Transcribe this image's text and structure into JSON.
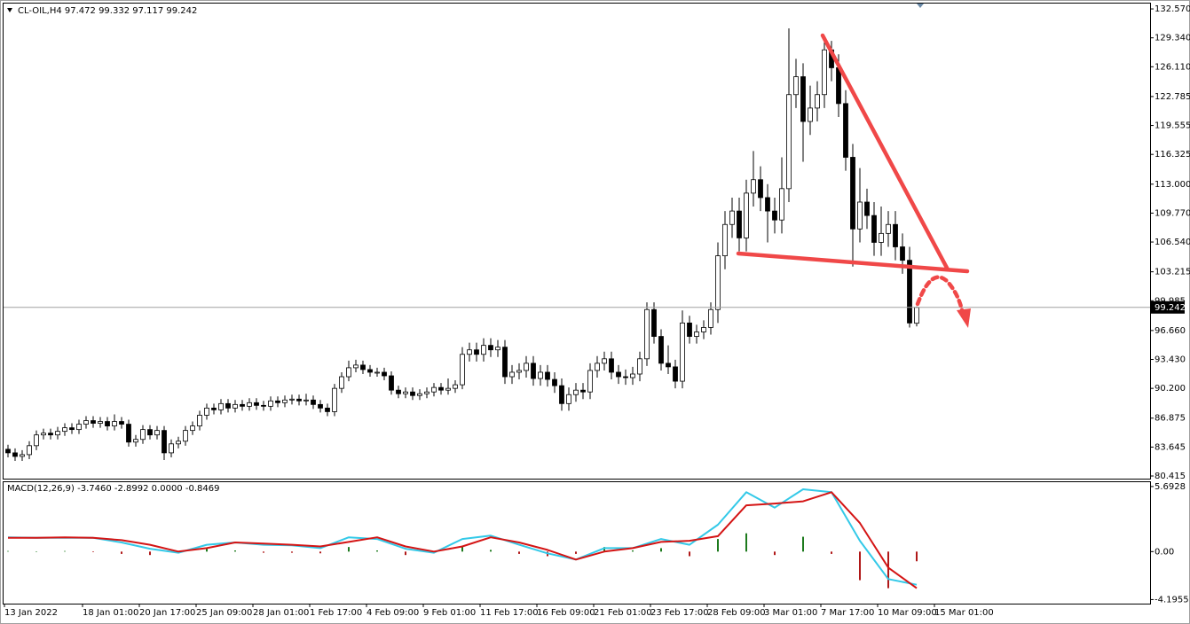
{
  "chart_data": [
    {
      "type": "candlestick",
      "title": "CL-OIL,H4  97.472 99.332 97.117 99.242",
      "categories": [
        "13 Jan 2022",
        null,
        null,
        null,
        null,
        null,
        null,
        null,
        null,
        null,
        null,
        "18 Jan 01:00",
        null,
        null,
        null,
        null,
        null,
        null,
        null,
        "20 Jan 17:00",
        null,
        null,
        null,
        null,
        null,
        null,
        null,
        "25 Jan 09:00",
        null,
        null,
        null,
        null,
        null,
        null,
        null,
        "28 Jan 01:00",
        null,
        null,
        null,
        null,
        null,
        null,
        null,
        "1 Feb 17:00",
        null,
        null,
        null,
        null,
        null,
        null,
        null,
        "4 Feb 09:00",
        null,
        null,
        null,
        null,
        null,
        null,
        null,
        "9 Feb 01:00",
        null,
        null,
        null,
        null,
        null,
        null,
        null,
        "11 Feb 17:00",
        null,
        null,
        null,
        null,
        null,
        null,
        null,
        "16 Feb 09:00",
        null,
        null,
        null,
        null,
        null,
        null,
        null,
        "21 Feb 01:00",
        null,
        null,
        null,
        null,
        null,
        null,
        null,
        "23 Feb 17:00",
        null,
        null,
        null,
        null,
        null,
        null,
        null,
        "28 Feb 09:00",
        null,
        null,
        null,
        null,
        null,
        null,
        null,
        "3 Mar 01:00",
        null,
        null,
        null,
        null,
        null,
        null,
        null,
        "7 Mar 17:00",
        null,
        null,
        null,
        null,
        null,
        null,
        null,
        "10 Mar 09:00",
        null,
        null,
        null,
        null,
        null,
        null,
        null,
        "15 Mar 01:00"
      ],
      "open": [
        83.4,
        83.0,
        82.6,
        82.8,
        83.8,
        85.0,
        85.2,
        85.0,
        85.4,
        85.8,
        85.6,
        86.2,
        86.6,
        86.3,
        86.5,
        86.0,
        86.5,
        86.2,
        84.2,
        84.5,
        85.6,
        85.0,
        85.5,
        83.0,
        84.0,
        84.3,
        85.5,
        86.0,
        87.2,
        88.0,
        87.8,
        88.5,
        88.0,
        88.4,
        88.2,
        88.6,
        88.3,
        88.2,
        88.8,
        88.6,
        88.9,
        89.0,
        88.8,
        88.9,
        88.4,
        88.0,
        87.6,
        90.2,
        91.5,
        92.5,
        92.8,
        92.3,
        92.0,
        92.0,
        91.6,
        90.0,
        89.6,
        89.8,
        89.4,
        89.6,
        89.8,
        90.3,
        90.0,
        90.2,
        90.6,
        94.0,
        94.5,
        94.0,
        95.0,
        94.5,
        94.8,
        91.5,
        92.0,
        92.2,
        93.0,
        91.3,
        92.0,
        91.2,
        90.5,
        88.5,
        89.5,
        90.0,
        89.8,
        92.2,
        93.0,
        93.5,
        92.0,
        91.5,
        91.4,
        91.8,
        93.5,
        99.0,
        96.0,
        93.0,
        92.6,
        91.0,
        97.5,
        96.0,
        96.5,
        97.0,
        99.0,
        105.0,
        108.5,
        110.0,
        107.0,
        112.0,
        113.5,
        111.5,
        110.0,
        109.0,
        112.5,
        123.0,
        125.0,
        120.0,
        121.5,
        123.0,
        128.0,
        126.0,
        122.0,
        116.0,
        108.0,
        111.0,
        109.5,
        106.5,
        107.5,
        108.5,
        106.0,
        104.5,
        97.472,
        null,
        null,
        null
      ],
      "high": [
        83.9,
        83.5,
        83.3,
        84.3,
        85.5,
        85.7,
        85.7,
        85.9,
        86.3,
        86.3,
        86.7,
        87.1,
        87.1,
        87.0,
        87.0,
        87.3,
        87.0,
        86.7,
        85.0,
        86.1,
        86.1,
        86.0,
        86.0,
        84.5,
        84.8,
        86.0,
        86.5,
        87.7,
        88.5,
        88.5,
        89.0,
        89.0,
        88.9,
        88.9,
        89.1,
        89.1,
        88.8,
        89.3,
        89.3,
        89.4,
        89.5,
        89.5,
        89.6,
        89.4,
        88.9,
        88.5,
        90.7,
        92.0,
        93.3,
        93.4,
        93.3,
        92.8,
        92.5,
        92.5,
        92.1,
        90.5,
        90.3,
        90.3,
        90.1,
        90.3,
        90.8,
        90.8,
        91.3,
        91.1,
        94.8,
        95.3,
        95.3,
        95.8,
        95.8,
        95.6,
        95.6,
        92.8,
        93.0,
        93.8,
        93.8,
        92.8,
        92.8,
        92.0,
        91.3,
        90.3,
        90.8,
        90.8,
        93.0,
        93.8,
        94.3,
        94.3,
        92.8,
        92.3,
        92.6,
        94.3,
        99.8,
        99.8,
        96.8,
        95.0,
        93.4,
        98.9,
        98.3,
        97.3,
        97.8,
        99.8,
        106.5,
        110.0,
        111.5,
        111.5,
        113.5,
        116.7,
        115.0,
        113.0,
        111.5,
        116.0,
        130.4,
        127.0,
        126.5,
        124.0,
        124.5,
        129.5,
        129.0,
        127.5,
        123.5,
        117.5,
        114.8,
        112.5,
        111.0,
        110.5,
        110.0,
        110.0,
        107.5,
        106.0,
        99.332,
        null,
        null,
        null
      ],
      "low": [
        82.5,
        82.1,
        82.1,
        82.3,
        83.3,
        84.5,
        84.5,
        84.5,
        84.9,
        85.1,
        85.1,
        85.7,
        85.8,
        85.8,
        85.5,
        85.5,
        85.7,
        83.7,
        83.7,
        84.0,
        84.5,
        84.5,
        82.2,
        82.5,
        83.5,
        83.8,
        85.0,
        85.5,
        86.7,
        87.3,
        87.3,
        87.5,
        87.5,
        87.7,
        87.7,
        87.8,
        87.7,
        87.7,
        88.1,
        88.1,
        88.4,
        88.3,
        88.3,
        87.9,
        87.5,
        87.1,
        87.1,
        89.7,
        91.0,
        92.0,
        91.8,
        91.5,
        91.5,
        91.1,
        89.5,
        89.1,
        89.1,
        88.9,
        88.9,
        89.1,
        89.3,
        89.5,
        89.5,
        89.7,
        90.1,
        93.2,
        93.2,
        93.2,
        93.7,
        93.7,
        90.7,
        90.7,
        91.2,
        91.4,
        90.5,
        90.5,
        90.4,
        89.7,
        87.7,
        87.7,
        88.7,
        89.0,
        89.0,
        91.4,
        92.2,
        91.2,
        90.7,
        90.6,
        90.6,
        91.0,
        92.7,
        95.2,
        92.2,
        91.8,
        90.2,
        90.2,
        95.2,
        95.2,
        95.7,
        96.2,
        97.5,
        103.5,
        107.0,
        105.5,
        105.5,
        110.5,
        110.0,
        106.5,
        107.5,
        107.5,
        111.0,
        121.5,
        115.5,
        118.5,
        120.0,
        121.5,
        124.5,
        120.5,
        114.5,
        103.8,
        106.5,
        108.0,
        105.0,
        105.0,
        106.0,
        104.5,
        103.0,
        97.0,
        97.117,
        null,
        null,
        null
      ],
      "close": [
        83.0,
        82.6,
        82.8,
        83.8,
        85.0,
        85.2,
        85.0,
        85.4,
        85.8,
        85.6,
        86.2,
        86.6,
        86.3,
        86.5,
        86.0,
        86.5,
        86.2,
        84.2,
        84.5,
        85.6,
        85.0,
        85.5,
        83.0,
        84.0,
        84.3,
        85.5,
        86.0,
        87.2,
        88.0,
        87.8,
        88.5,
        88.0,
        88.4,
        88.2,
        88.6,
        88.3,
        88.2,
        88.8,
        88.6,
        88.9,
        89.0,
        88.8,
        88.9,
        88.4,
        88.0,
        87.6,
        90.2,
        91.5,
        92.5,
        92.8,
        92.3,
        92.0,
        92.0,
        91.6,
        90.0,
        89.6,
        89.8,
        89.4,
        89.6,
        89.8,
        90.3,
        90.0,
        90.2,
        90.6,
        94.0,
        94.5,
        94.0,
        95.0,
        94.5,
        94.8,
        91.5,
        92.0,
        92.2,
        93.0,
        91.3,
        92.0,
        91.2,
        90.5,
        88.5,
        89.5,
        90.0,
        89.8,
        92.2,
        93.0,
        93.5,
        92.0,
        91.5,
        91.4,
        91.8,
        93.5,
        99.0,
        96.0,
        93.0,
        92.6,
        91.0,
        97.5,
        96.0,
        96.5,
        97.0,
        99.0,
        105.0,
        108.5,
        110.0,
        107.0,
        112.0,
        113.5,
        111.5,
        110.0,
        109.0,
        112.5,
        123.0,
        125.0,
        120.0,
        121.5,
        123.0,
        128.0,
        126.0,
        122.0,
        116.0,
        108.0,
        111.0,
        109.5,
        106.5,
        107.5,
        108.5,
        106.0,
        104.5,
        97.5,
        99.242,
        null,
        null,
        null
      ],
      "up_color": "#ffffff",
      "down_color": "#000000",
      "wick_color": "#000000",
      "last_price": 99.242,
      "last_price_color": "#a0a0a0",
      "ylim": [
        80.12,
        133.07
      ],
      "yticks": [
        {
          "value": 132.57,
          "label": "132.570"
        },
        {
          "value": 129.34,
          "label": "129.340"
        },
        {
          "value": 126.11,
          "label": "126.110"
        },
        122.785,
        119.555,
        116.325,
        {
          "value": 113,
          "label": "113.000"
        },
        {
          "value": 109.77,
          "label": "109.770"
        },
        {
          "value": 106.54,
          "label": "106.540"
        },
        103.215,
        99.985,
        {
          "value": 96.66,
          "label": "96.660"
        },
        {
          "value": 93.43,
          "label": "93.430"
        },
        {
          "value": 90.2,
          "label": "90.200"
        },
        86.875,
        83.645,
        80.415
      ],
      "grid": false
    },
    {
      "type": "macd",
      "title": "MACD(12,26,9) -3.7460 -2.8992 0.0000 -0.8469",
      "x": [
        0,
        4,
        8,
        12,
        16,
        20,
        24,
        28,
        32,
        36,
        40,
        44,
        48,
        52,
        56,
        60,
        64,
        68,
        72,
        76,
        80,
        84,
        88,
        92,
        96,
        100,
        104,
        108,
        112,
        116,
        120,
        124,
        128
      ],
      "xlim": [
        -0.5,
        131.5
      ],
      "series": [
        {
          "color": "#33c9e8",
          "values": [
            1.25,
            1.2,
            1.2,
            1.2,
            0.8,
            0.25,
            -0.1,
            0.6,
            0.8,
            0.6,
            0.55,
            0.3,
            1.25,
            1.1,
            0.25,
            -0.1,
            1.1,
            1.4,
            0.6,
            -0.15,
            -0.7,
            0.3,
            0.3,
            1.1,
            0.6,
            2.35,
            5.2,
            3.85,
            5.45,
            5.2,
            0.95,
            -2.4,
            -2.8992
          ]
        },
        {
          "color": "#d41414",
          "values": [
            1.2,
            1.2,
            1.25,
            1.2,
            1.0,
            0.6,
            0,
            0.3,
            0.8,
            0.7,
            0.6,
            0.45,
            0.85,
            1.25,
            0.45,
            0,
            0.45,
            1.25,
            0.8,
            0.15,
            -0.7,
            0,
            0.3,
            0.85,
            0.95,
            1.35,
            4.05,
            4.2,
            4.4,
            5.2,
            2.5,
            -1.4,
            -3.2
          ]
        }
      ],
      "histogram": {
        "up_color": "#1d7a1d",
        "down_color": "#b01818",
        "values": [
          0.05,
          0,
          0.05,
          -0.05,
          -0.2,
          -0.3,
          -0.1,
          0.3,
          0.1,
          -0.1,
          -0.1,
          -0.15,
          0.4,
          0.1,
          -0.3,
          -0.1,
          0.5,
          0.15,
          -0.2,
          -0.4,
          -0.2,
          0.4,
          0.1,
          0.3,
          -0.4,
          1.1,
          1.6,
          -0.3,
          1.3,
          -0.2,
          -2.5,
          -3.2,
          -0.8469
        ]
      },
      "ylim": [
        -4.55,
        6.15
      ],
      "yticks": [
        5.6928,
        {
          "value": 0,
          "label": "0.00"
        },
        -4.1955
      ]
    }
  ]
}
